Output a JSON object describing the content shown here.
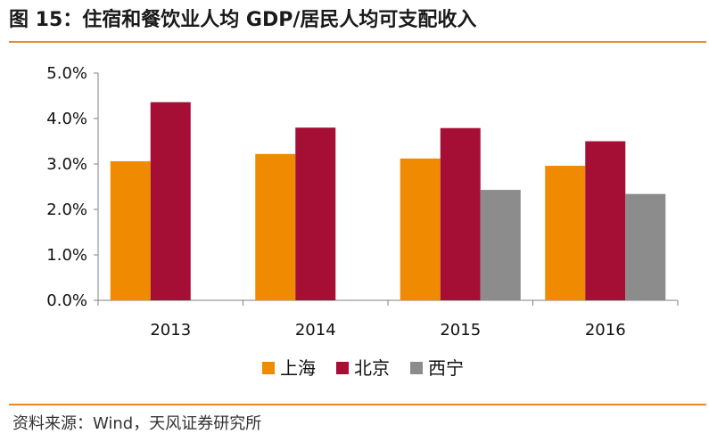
{
  "title": "图 15：住宿和餐饮业人均 GDP/居民人均可支配收入",
  "source": "资料来源：Wind，天风证券研究所",
  "colors": {
    "accent_rule": "#E8892A",
    "axis": "#808080"
  },
  "chart_data": {
    "type": "bar",
    "title": "",
    "xlabel": "",
    "ylabel": "",
    "categories": [
      "2013",
      "2014",
      "2015",
      "2016"
    ],
    "ylim": [
      0,
      5
    ],
    "yticks": [
      "0.0%",
      "1.0%",
      "2.0%",
      "3.0%",
      "4.0%",
      "5.0%"
    ],
    "grid": false,
    "legend_position": "bottom",
    "series": [
      {
        "name": "上海",
        "color": "#F08A00",
        "values": [
          3.06,
          3.22,
          3.12,
          2.96
        ]
      },
      {
        "name": "北京",
        "color": "#A50F35",
        "values": [
          4.36,
          3.8,
          3.79,
          3.5
        ]
      },
      {
        "name": "西宁",
        "color": "#8C8C8C",
        "values": [
          null,
          null,
          2.43,
          2.34
        ]
      }
    ]
  }
}
